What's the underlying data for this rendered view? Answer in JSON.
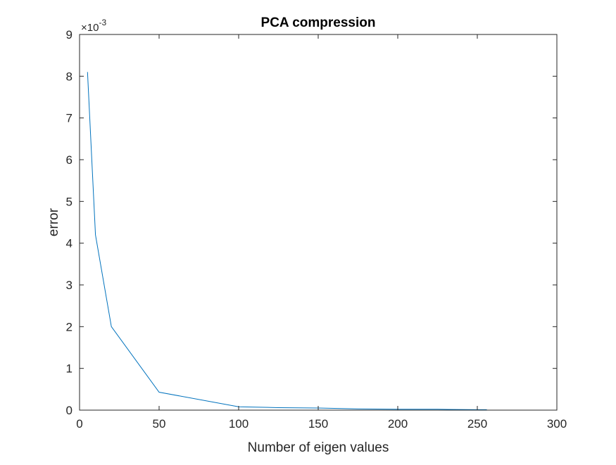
{
  "chart_data": {
    "type": "line",
    "title": "PCA compression",
    "xlabel": "Number of eigen values",
    "ylabel": "error",
    "y_exponent_label": "×10",
    "y_exponent_power": "-3",
    "xlim": [
      0,
      300
    ],
    "ylim": [
      0,
      0.009
    ],
    "x_ticks": [
      0,
      50,
      100,
      150,
      200,
      250,
      300
    ],
    "x_tick_labels": [
      "0",
      "50",
      "100",
      "150",
      "200",
      "250",
      "300"
    ],
    "y_ticks": [
      0,
      0.001,
      0.002,
      0.003,
      0.004,
      0.005,
      0.006,
      0.007,
      0.008,
      0.009
    ],
    "y_tick_labels": [
      "0",
      "1",
      "2",
      "3",
      "4",
      "5",
      "6",
      "7",
      "8",
      "9"
    ],
    "grid": false,
    "series": [
      {
        "color": "#0072bd",
        "x": [
          5,
          10,
          20,
          50,
          100,
          125,
          150,
          175,
          200,
          225,
          250,
          256
        ],
        "y": [
          0.0081,
          0.0042,
          0.002,
          0.00043,
          8e-05,
          6e-05,
          5e-05,
          3e-05,
          2e-05,
          2e-05,
          1e-05,
          1e-05
        ]
      }
    ]
  }
}
